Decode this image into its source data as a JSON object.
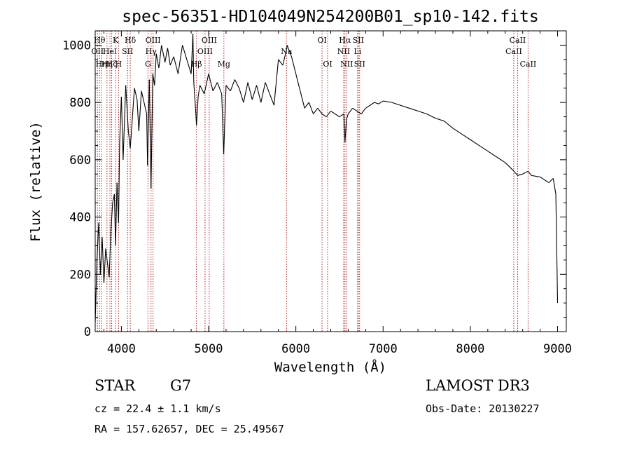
{
  "chart_data": {
    "type": "line",
    "title": "spec-56351-HD104049N254200B01_sp10-142.fits",
    "xlabel": "Wavelength (Å)",
    "ylabel": "Flux (relative)",
    "xlim": [
      3700,
      9100
    ],
    "ylim": [
      0,
      1050
    ],
    "xticks": [
      4000,
      5000,
      6000,
      7000,
      8000,
      9000
    ],
    "yticks": [
      0,
      200,
      400,
      600,
      800,
      1000
    ],
    "grid": false,
    "series": [
      {
        "name": "flux",
        "x": [
          3700,
          3720,
          3740,
          3760,
          3780,
          3800,
          3820,
          3840,
          3860,
          3880,
          3900,
          3920,
          3933,
          3950,
          3968,
          3980,
          4000,
          4020,
          4050,
          4080,
          4102,
          4120,
          4150,
          4180,
          4200,
          4230,
          4260,
          4290,
          4300,
          4320,
          4340,
          4360,
          4380,
          4400,
          4430,
          4460,
          4500,
          4530,
          4560,
          4600,
          4650,
          4700,
          4750,
          4800,
          4820,
          4830,
          4850,
          4861,
          4880,
          4900,
          4950,
          5000,
          5050,
          5100,
          5150,
          5173,
          5200,
          5250,
          5300,
          5350,
          5400,
          5450,
          5500,
          5550,
          5600,
          5650,
          5700,
          5750,
          5800,
          5850,
          5890,
          5900,
          5950,
          6000,
          6050,
          6100,
          6150,
          6200,
          6250,
          6300,
          6350,
          6400,
          6450,
          6500,
          6550,
          6563,
          6580,
          6600,
          6650,
          6700,
          6750,
          6800,
          6850,
          6900,
          6950,
          7000,
          7100,
          7200,
          7300,
          7400,
          7500,
          7600,
          7700,
          7800,
          7900,
          8000,
          8100,
          8200,
          8300,
          8400,
          8500,
          8542,
          8600,
          8662,
          8700,
          8800,
          8900,
          8950,
          8980,
          9000
        ],
        "values": [
          30,
          250,
          380,
          200,
          330,
          170,
          290,
          240,
          190,
          350,
          450,
          480,
          300,
          520,
          380,
          660,
          820,
          600,
          860,
          700,
          640,
          720,
          850,
          810,
          700,
          840,
          800,
          760,
          580,
          880,
          500,
          900,
          860,
          970,
          920,
          1000,
          940,
          990,
          930,
          960,
          900,
          1000,
          950,
          900,
          1040,
          870,
          780,
          720,
          820,
          860,
          830,
          900,
          840,
          870,
          830,
          620,
          860,
          840,
          880,
          850,
          800,
          870,
          810,
          860,
          800,
          870,
          830,
          790,
          950,
          930,
          980,
          1000,
          960,
          900,
          840,
          780,
          800,
          760,
          780,
          760,
          750,
          770,
          760,
          750,
          760,
          660,
          740,
          760,
          780,
          770,
          760,
          780,
          790,
          800,
          795,
          805,
          800,
          790,
          780,
          770,
          760,
          745,
          735,
          710,
          690,
          670,
          650,
          630,
          610,
          590,
          560,
          545,
          550,
          560,
          545,
          540,
          520,
          535,
          480,
          100
        ]
      }
    ],
    "lines": [
      {
        "wl": 3726,
        "label": "OII",
        "row": 2
      },
      {
        "wl": 3750,
        "label": "Hθ",
        "row": 1
      },
      {
        "wl": 3770,
        "label": "Hη",
        "row": 3
      },
      {
        "wl": 3835,
        "label": "Hη",
        "row": 3
      },
      {
        "wl": 3869,
        "label": "HeI",
        "row": 2
      },
      {
        "wl": 3889,
        "label": "Hζ",
        "row": 3
      },
      {
        "wl": 3934,
        "label": "K",
        "row": 1
      },
      {
        "wl": 3968,
        "label": "H",
        "row": 3
      },
      {
        "wl": 4071,
        "label": "SII",
        "row": 2
      },
      {
        "wl": 4102,
        "label": "Hδ",
        "row": 1
      },
      {
        "wl": 4305,
        "label": "G",
        "row": 3
      },
      {
        "wl": 4340,
        "label": "Hγ",
        "row": 2
      },
      {
        "wl": 4363,
        "label": "OIII",
        "row": 1
      },
      {
        "wl": 4861,
        "label": "Hβ",
        "row": 3
      },
      {
        "wl": 4959,
        "label": "OIII",
        "row": 2
      },
      {
        "wl": 5007,
        "label": "OIII",
        "row": 1
      },
      {
        "wl": 5175,
        "label": "Mg",
        "row": 3
      },
      {
        "wl": 5893,
        "label": "Na",
        "row": 2
      },
      {
        "wl": 6300,
        "label": "OI",
        "row": 1
      },
      {
        "wl": 6364,
        "label": "OI",
        "row": 3
      },
      {
        "wl": 6548,
        "label": "NII",
        "row": 2
      },
      {
        "wl": 6563,
        "label": "Hα",
        "row": 1
      },
      {
        "wl": 6583,
        "label": "NII",
        "row": 3
      },
      {
        "wl": 6708,
        "label": "Li",
        "row": 2
      },
      {
        "wl": 6716,
        "label": "SII",
        "row": 1
      },
      {
        "wl": 6731,
        "label": "SII",
        "row": 3
      },
      {
        "wl": 8498,
        "label": "CaII",
        "row": 2
      },
      {
        "wl": 8542,
        "label": "CaII",
        "row": 1
      },
      {
        "wl": 8662,
        "label": "CaII",
        "row": 3
      }
    ]
  },
  "info": {
    "object_type": "STAR",
    "subclass": "G7",
    "survey": "LAMOST DR3",
    "cz": "cz = 22.4 ± 1.1 km/s",
    "obs_date": "Obs-Date: 20130227",
    "coords": "RA = 157.62657, DEC =  25.49567"
  },
  "colors": {
    "line": "#000000",
    "marker": "#b22222"
  }
}
